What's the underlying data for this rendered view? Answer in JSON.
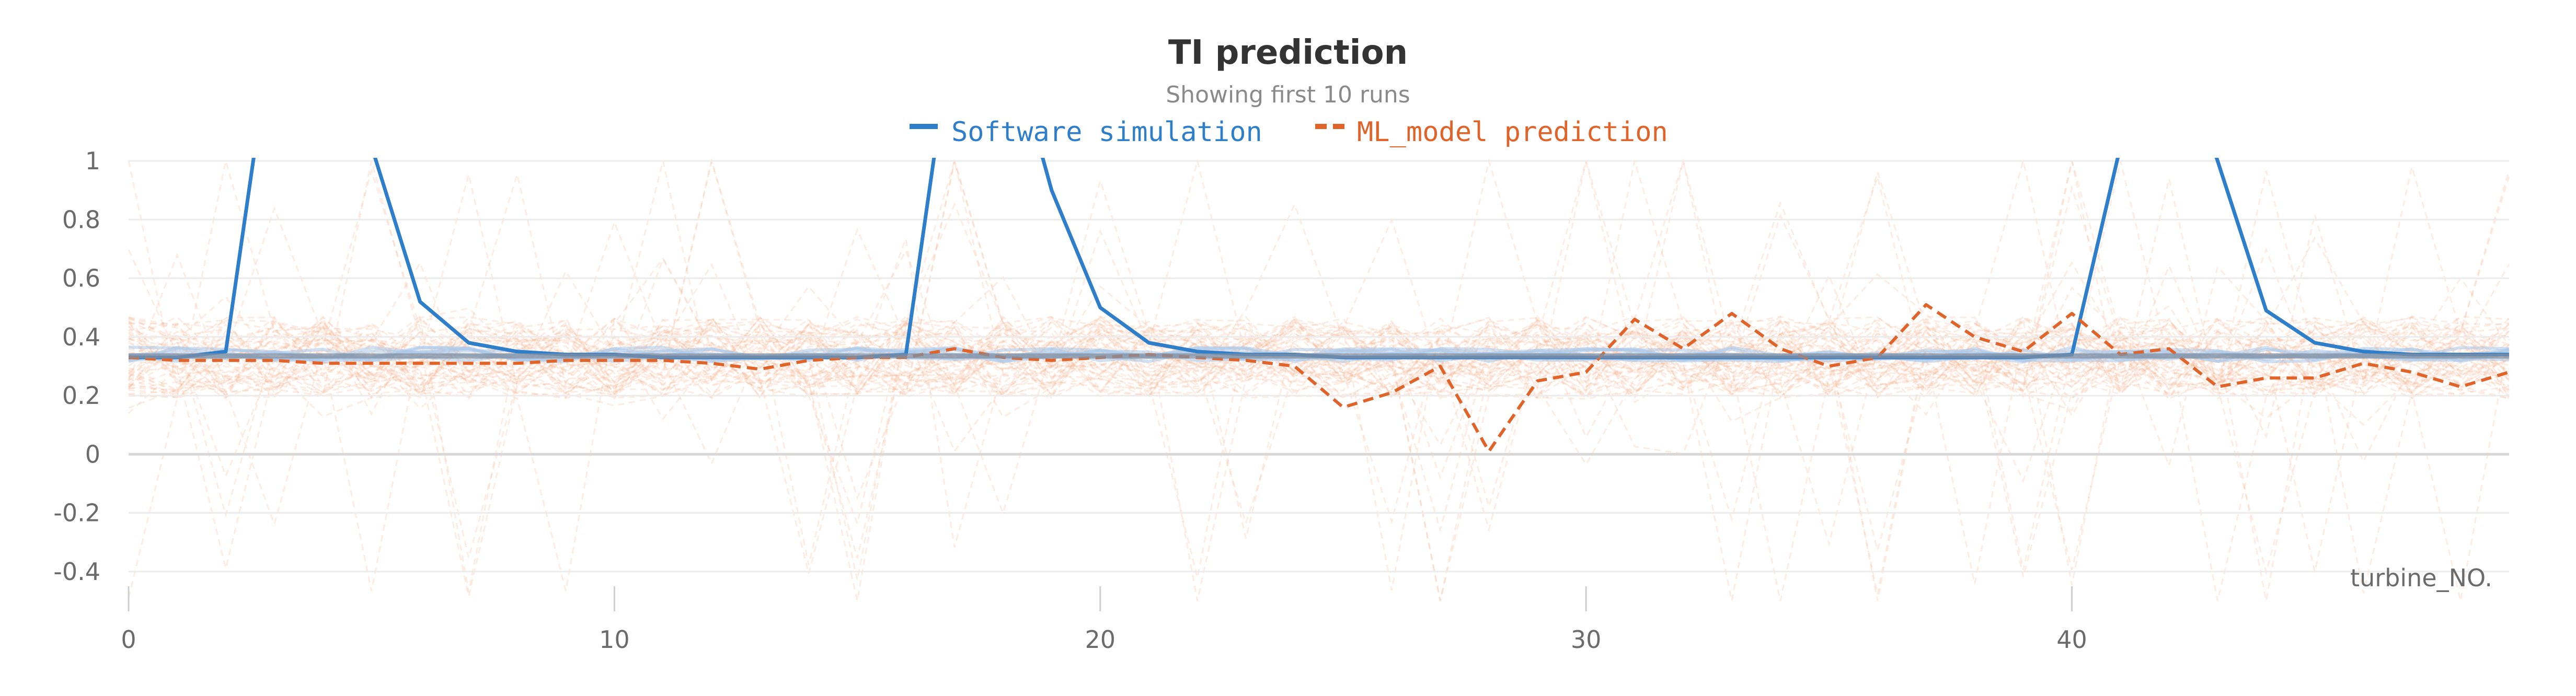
{
  "chart_data": {
    "type": "line",
    "title": "TI prediction",
    "subtitle": "Showing first 10 runs",
    "xlabel": "turbine_NO.",
    "ylabel": "",
    "xlim": [
      0,
      49
    ],
    "ylim": [
      -0.5,
      1
    ],
    "x_ticks": [
      0,
      10,
      20,
      30,
      40
    ],
    "y_ticks": [
      1,
      0.8,
      0.6,
      0.4,
      0.2,
      0,
      -0.2,
      -0.4
    ],
    "y_tick_labels": [
      "1",
      "0.8",
      "0.6",
      "0.4",
      "0.2",
      "0",
      "-0.2",
      "-0.4"
    ],
    "grid": true,
    "legend_position": "top-center",
    "colors": {
      "software": "#2f7ec9",
      "ml": "#e0632a",
      "ml_faint": "#f5b99a",
      "sw_faint": "#a9c8ea",
      "grid": "#ececec",
      "zero_line": "#d8d8d8",
      "tick_text": "#6b6b6b",
      "title_text": "#333333"
    },
    "x": [
      0,
      1,
      2,
      3,
      4,
      5,
      6,
      7,
      8,
      9,
      10,
      11,
      12,
      13,
      14,
      15,
      16,
      17,
      18,
      19,
      20,
      21,
      22,
      23,
      24,
      25,
      26,
      27,
      28,
      29,
      30,
      31,
      32,
      33,
      34,
      35,
      36,
      37,
      38,
      39,
      40,
      41,
      42,
      43,
      44,
      45,
      46,
      47,
      48,
      49
    ],
    "series": [
      {
        "name": "Software simulation",
        "style": "solid",
        "values": [
          0.33,
          0.33,
          0.35,
          1.5,
          1.5,
          1.05,
          0.52,
          0.38,
          0.35,
          0.34,
          0.34,
          0.33,
          0.33,
          0.33,
          0.33,
          0.33,
          0.34,
          1.5,
          1.5,
          0.9,
          0.5,
          0.38,
          0.35,
          0.34,
          0.34,
          0.33,
          0.33,
          0.33,
          0.33,
          0.33,
          0.33,
          0.33,
          0.33,
          0.33,
          0.33,
          0.33,
          0.33,
          0.33,
          0.33,
          0.33,
          0.34,
          1.05,
          1.5,
          1.0,
          0.49,
          0.38,
          0.35,
          0.34,
          0.34,
          0.34
        ]
      },
      {
        "name": "ML_model prediction",
        "style": "dashed",
        "values": [
          0.33,
          0.32,
          0.32,
          0.32,
          0.31,
          0.31,
          0.31,
          0.31,
          0.31,
          0.32,
          0.32,
          0.32,
          0.31,
          0.29,
          0.32,
          0.33,
          0.33,
          0.36,
          0.33,
          0.32,
          0.33,
          0.34,
          0.33,
          0.32,
          0.3,
          0.16,
          0.21,
          0.3,
          0.01,
          0.25,
          0.28,
          0.46,
          0.36,
          0.48,
          0.36,
          0.3,
          0.33,
          0.51,
          0.4,
          0.35,
          0.48,
          0.34,
          0.36,
          0.23,
          0.26,
          0.26,
          0.31,
          0.28,
          0.23,
          0.28
        ]
      }
    ]
  }
}
